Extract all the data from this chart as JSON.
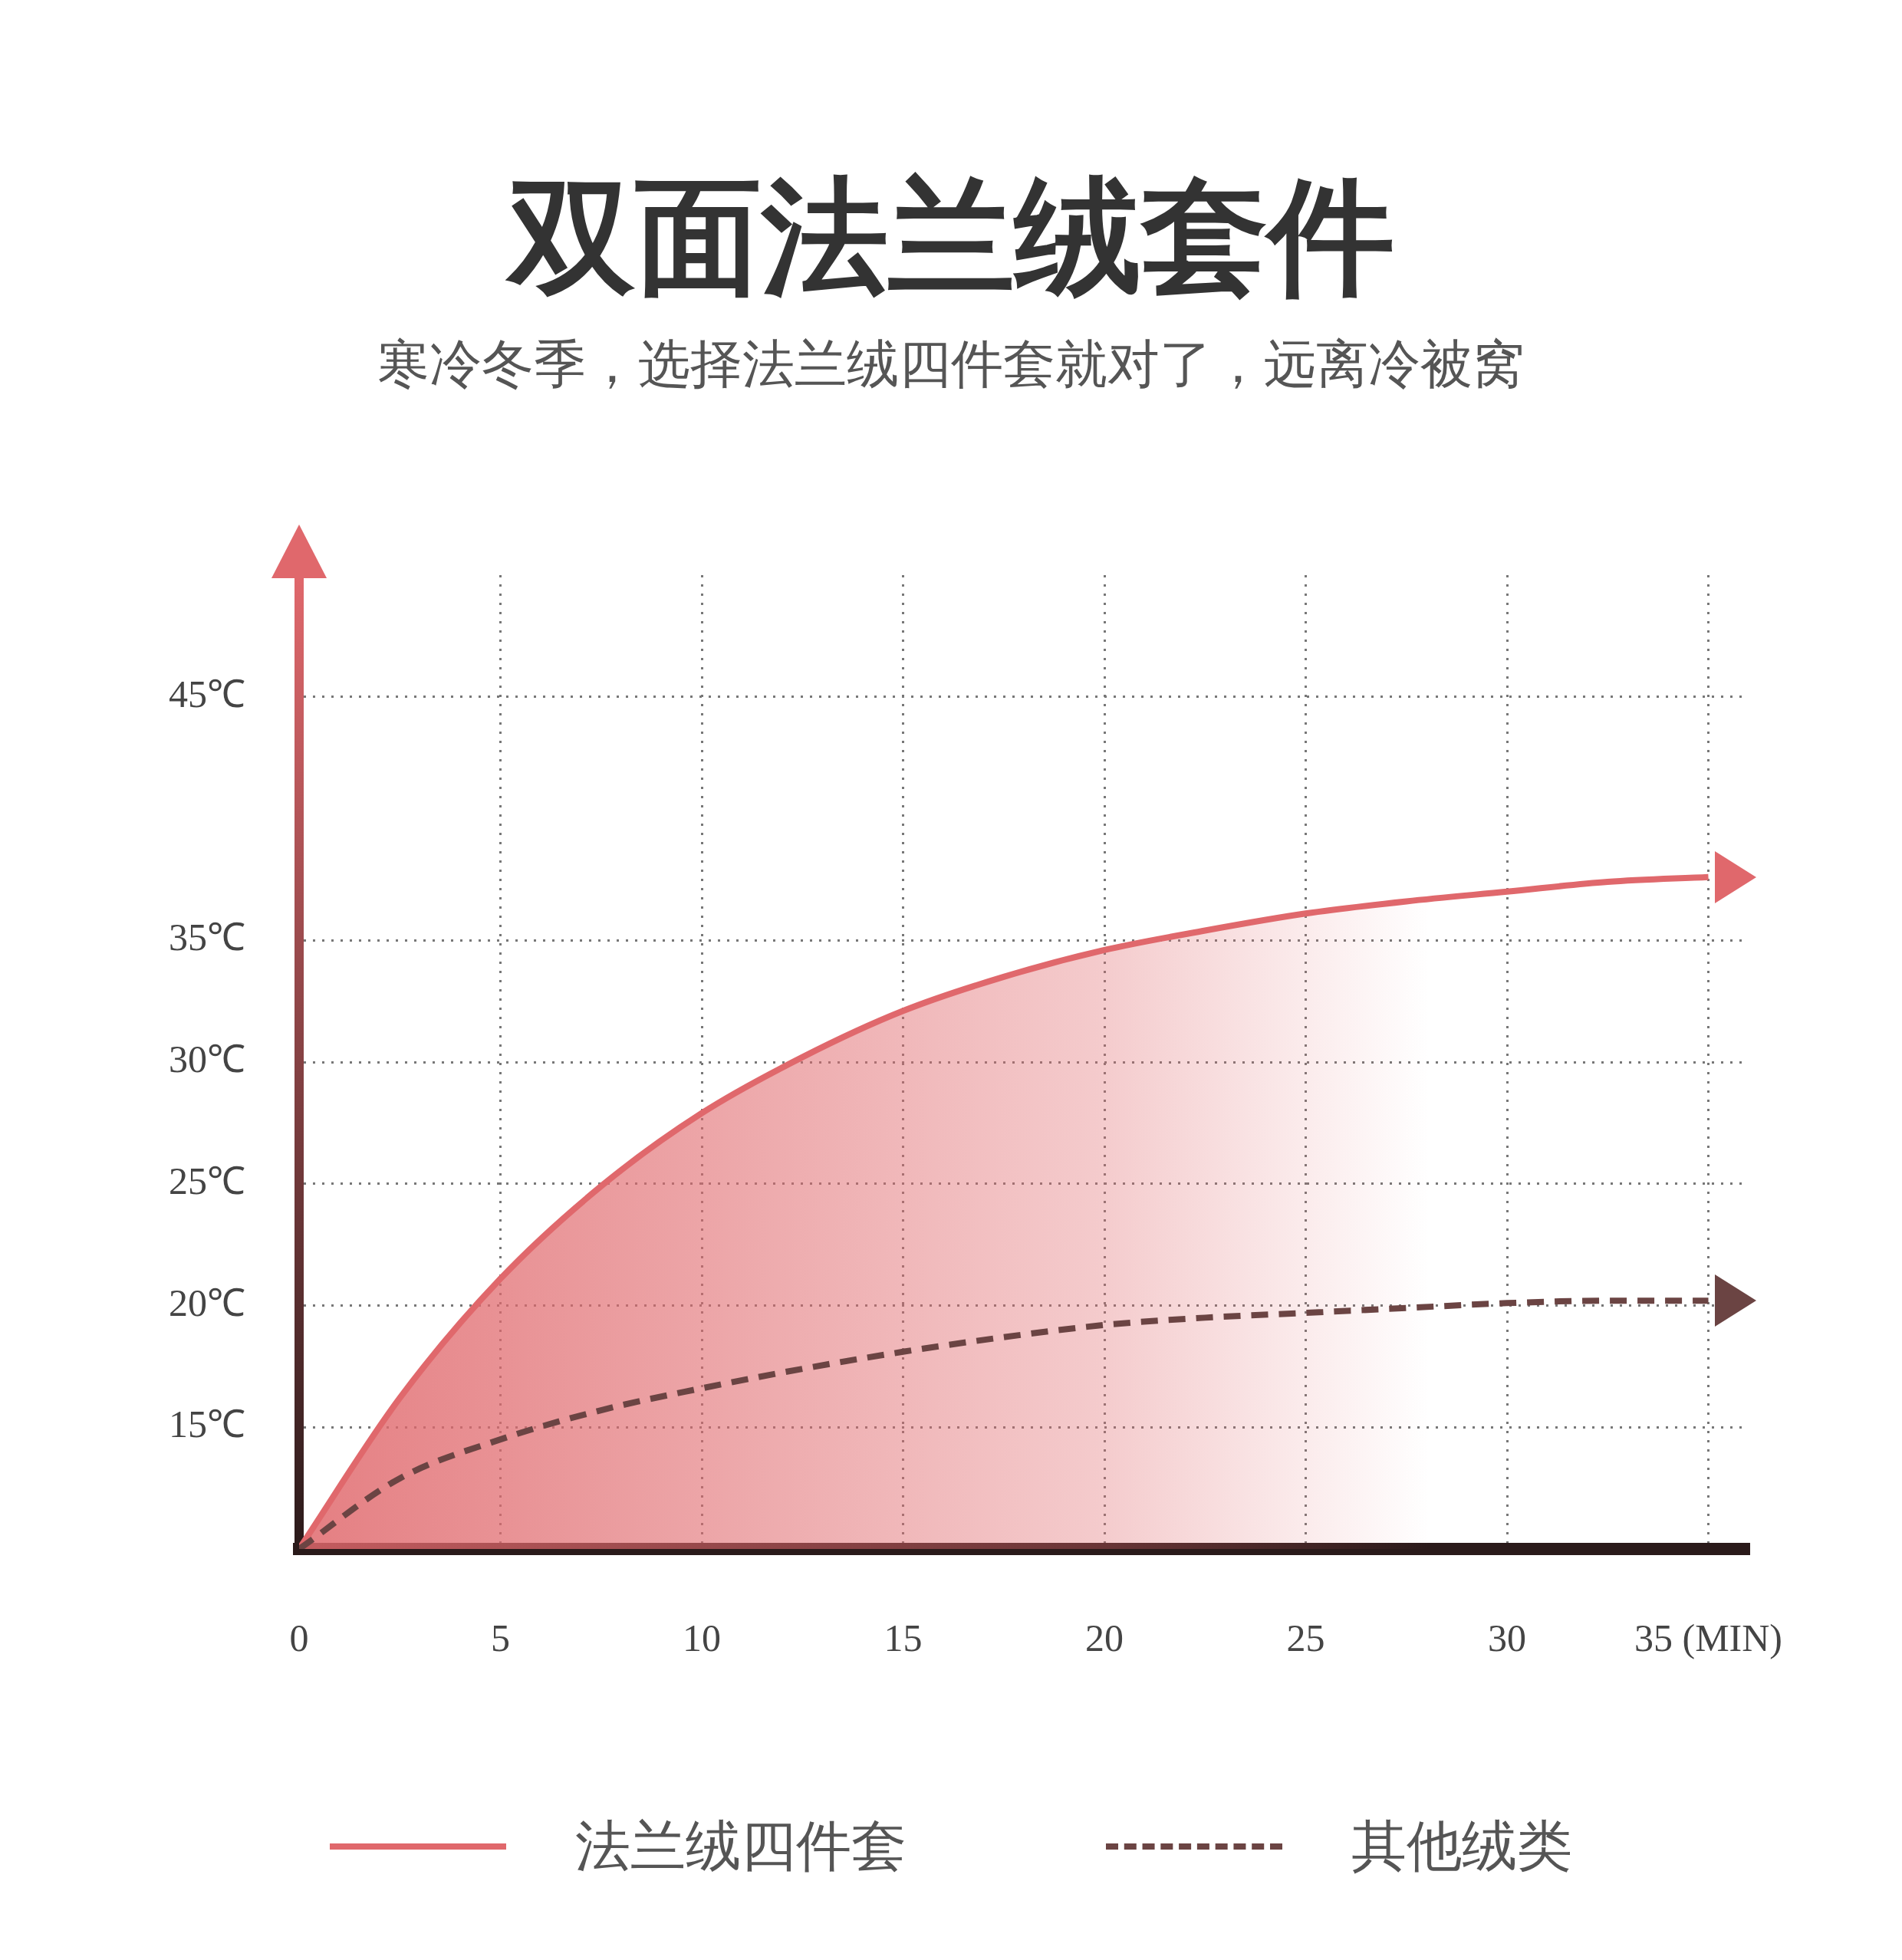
{
  "chart_data": {
    "type": "line",
    "title": "双面法兰绒套件",
    "subtitle": "寒冷冬季，选择法兰绒四件套就对了，远离冷被窝",
    "xlim": [
      0,
      36
    ],
    "xticks": [
      0,
      5,
      10,
      15,
      20,
      25,
      30,
      {
        "value": 35,
        "label": "35 (MIN)"
      }
    ],
    "ylim": [
      10,
      50
    ],
    "yticks": [
      {
        "value": 15,
        "label": "15℃"
      },
      {
        "value": 20,
        "label": "20℃"
      },
      {
        "value": 25,
        "label": "25℃"
      },
      {
        "value": 30,
        "label": "30℃"
      },
      {
        "value": 35,
        "label": "35℃"
      },
      {
        "value": 45,
        "label": "45℃"
      }
    ],
    "x": [
      0,
      2.5,
      5,
      7.5,
      10,
      12.5,
      15,
      17.5,
      20,
      22.5,
      25,
      27.5,
      30,
      32.5,
      35
    ],
    "series": [
      {
        "name": "法兰绒四件套",
        "type": "area",
        "color": "#e0686c",
        "line_style": "solid",
        "values": [
          10,
          16.2,
          21.1,
          24.9,
          27.9,
          30.2,
          32.1,
          33.5,
          34.6,
          35.4,
          36.1,
          36.6,
          37.0,
          37.4,
          37.6
        ]
      },
      {
        "name": "其他绒类",
        "type": "line",
        "color": "#6b4443",
        "line_style": "dashed",
        "values": [
          10,
          12.9,
          14.5,
          15.7,
          16.6,
          17.4,
          18.1,
          18.7,
          19.2,
          19.5,
          19.7,
          19.9,
          20.1,
          20.2,
          20.2
        ]
      }
    ],
    "grid": true,
    "legend": "bottom",
    "marker": "none"
  }
}
